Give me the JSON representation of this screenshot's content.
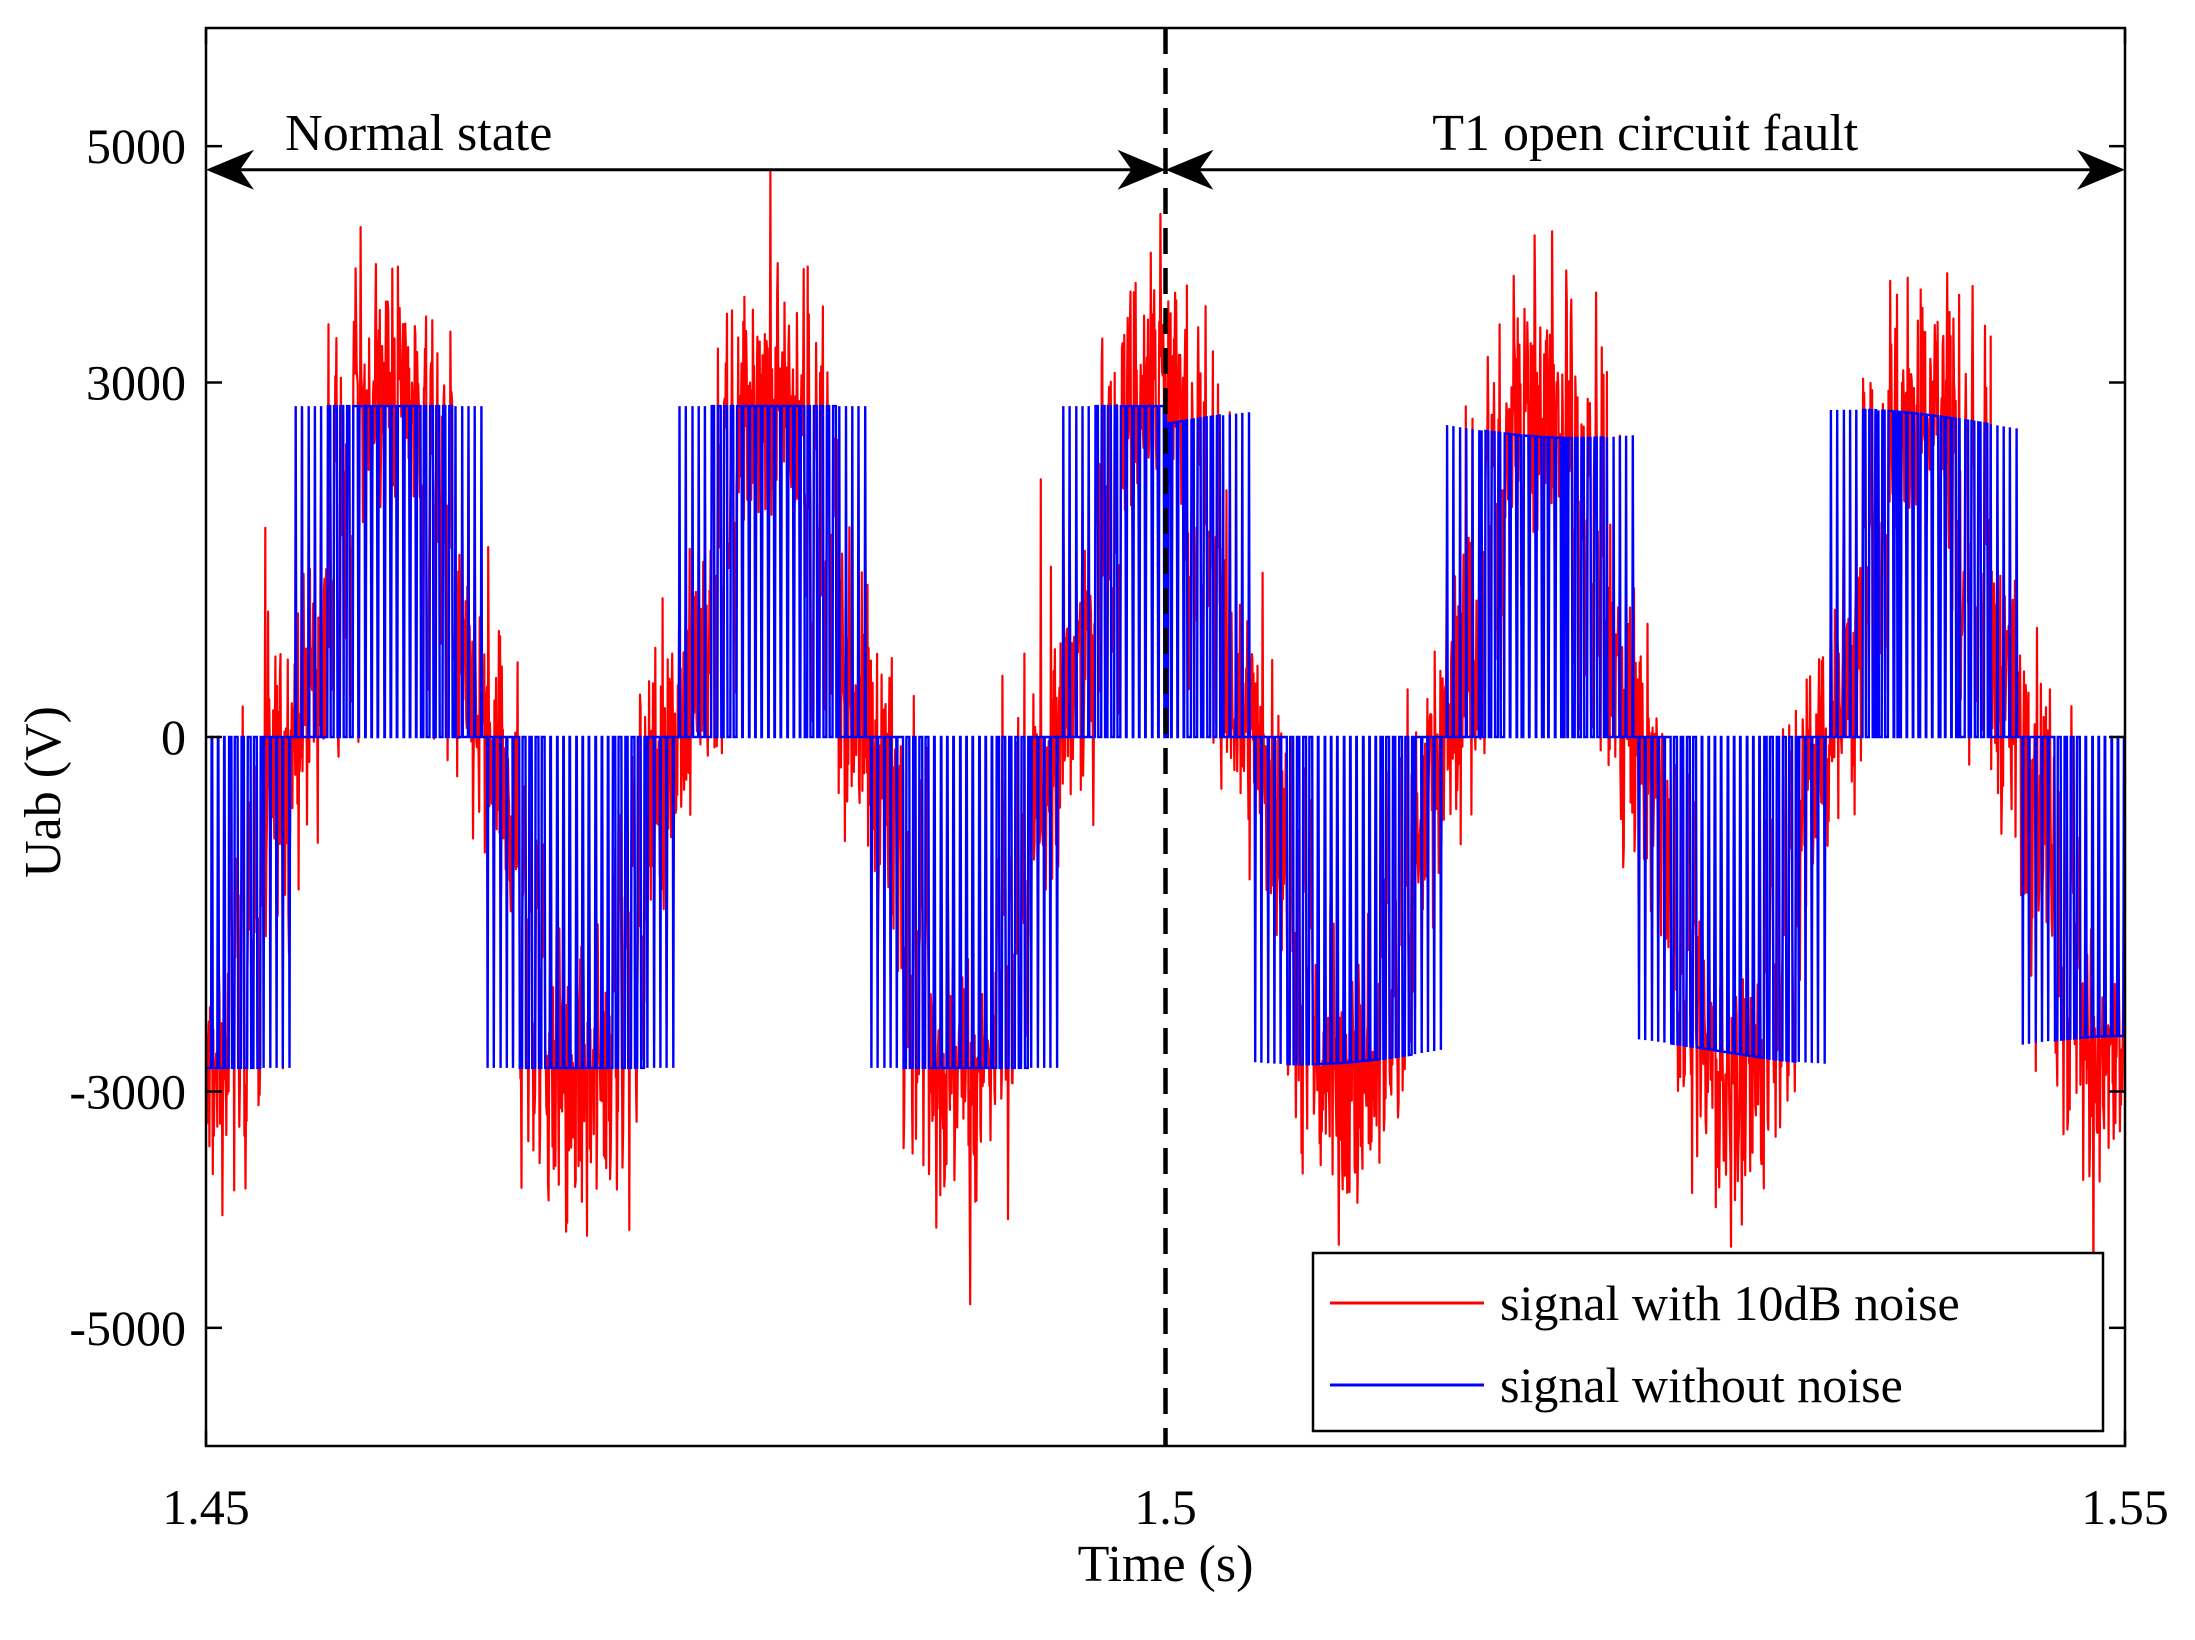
{
  "chart_data": {
    "type": "line",
    "title": "",
    "xlabel": "Time (s)",
    "ylabel": "Uab (V)",
    "xlim": [
      1.45,
      1.55
    ],
    "ylim": [
      -6000,
      6000
    ],
    "xticks": [
      1.45,
      1.5,
      1.55
    ],
    "xtick_labels": [
      "1.45",
      "1.5",
      "1.55"
    ],
    "yticks": [
      5000,
      3000,
      0,
      -3000,
      -5000
    ],
    "ytick_labels": [
      "5000",
      "3000",
      "0",
      "-3000",
      "-5000"
    ],
    "grid": false,
    "legend_position": "bottom-right",
    "fundamental_frequency_hz": 50,
    "dc_level_v": 2800,
    "faulted_dc_level_v": 2650,
    "fault_time_s": 1.5,
    "series": [
      {
        "name": "signal with 10dB noise",
        "color": "#ff0000",
        "amplitude_range_v": [
          -4800,
          4800
        ]
      },
      {
        "name": "signal without noise",
        "color": "#0000ff",
        "levels_v": [
          -2800,
          0,
          2800
        ]
      }
    ],
    "annotations": [
      {
        "text": "Normal state",
        "x_range": [
          1.45,
          1.5
        ],
        "y": 4800
      },
      {
        "text": "T1 open circuit fault",
        "x_range": [
          1.5,
          1.55
        ],
        "y": 4800
      }
    ],
    "vertical_line": {
      "x": 1.5,
      "style": "dashed"
    }
  }
}
